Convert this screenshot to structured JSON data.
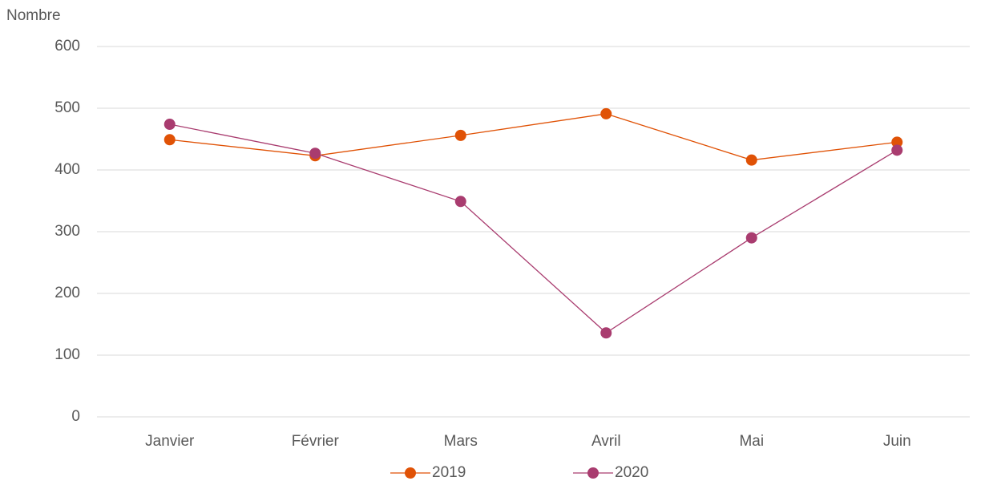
{
  "chart_data": {
    "type": "line",
    "y_label": "Nombre",
    "categories": [
      "Janvier",
      "Février",
      "Mars",
      "Avril",
      "Mai",
      "Juin"
    ],
    "series": [
      {
        "name": "2019",
        "color": "#e05206",
        "values": [
          449,
          423,
          456,
          491,
          416,
          445
        ]
      },
      {
        "name": "2020",
        "color": "#a93c6f",
        "values": [
          474,
          427,
          349,
          136,
          290,
          432
        ]
      }
    ],
    "ylim": [
      0,
      600
    ],
    "yticks": [
      0,
      100,
      200,
      300,
      400,
      500,
      600
    ],
    "grid": true,
    "legend": "bottom"
  }
}
